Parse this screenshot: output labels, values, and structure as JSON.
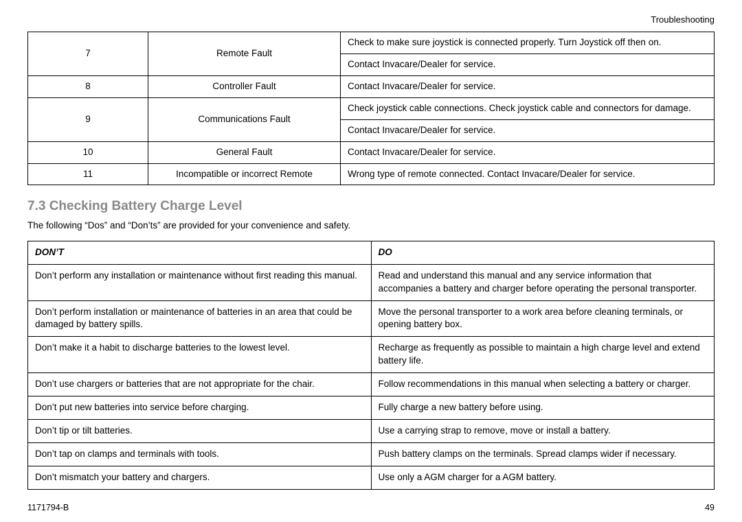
{
  "header": {
    "section_label": "Troubleshooting"
  },
  "fault_table": {
    "rows": [
      {
        "code": "7",
        "name": "Remote Fault",
        "descs": [
          "Check to make sure joystick is connected properly. Turn Joystick off then on.",
          "Contact Invacare/Dealer for service."
        ]
      },
      {
        "code": "8",
        "name": "Controller Fault",
        "descs": [
          "Contact Invacare/Dealer for service."
        ]
      },
      {
        "code": "9",
        "name": "Communications Fault",
        "descs": [
          "Check joystick cable connections. Check joystick cable and connectors for damage.",
          "Contact Invacare/Dealer for service."
        ]
      },
      {
        "code": "10",
        "name": "General Fault",
        "descs": [
          "Contact Invacare/Dealer for service."
        ]
      },
      {
        "code": "11",
        "name": "Incompatible or incorrect Remote",
        "descs": [
          "Wrong type of remote connected. Contact Invacare/Dealer for service."
        ]
      }
    ]
  },
  "section": {
    "title": "7.3 Checking Battery Charge Level",
    "intro": "The following “Dos” and “Don’ts” are provided for your convenience and safety."
  },
  "dos_table": {
    "headers": {
      "dont": "Don’t",
      "do_": "Do"
    },
    "rows": [
      {
        "dont": "Don’t perform any installation or maintenance without first reading this manual.",
        "do_": "Read and understand this manual and any service information that accompanies a battery and charger before operating the personal transporter."
      },
      {
        "dont": "Don’t perform installation or maintenance of batteries in an area that could be damaged by battery spills.",
        "do_": "Move the personal transporter to a work area before cleaning terminals, or opening battery box."
      },
      {
        "dont": "Don’t make it a habit to discharge batteries to the lowest level.",
        "do_": "Recharge as frequently as possible to maintain a high charge level and extend battery life."
      },
      {
        "dont": "Don’t use chargers or batteries that are not appropriate for the chair.",
        "do_": "Follow recommendations in this manual when selecting a battery or charger."
      },
      {
        "dont": "Don’t put new batteries into service before charging.",
        "do_": "Fully charge a new battery before using."
      },
      {
        "dont": "Don’t tip or tilt batteries.",
        "do_": "Use a carrying strap to remove, move or install a battery."
      },
      {
        "dont": "Don’t tap on clamps and terminals with tools.",
        "do_": "Push battery clamps on the terminals. Spread clamps wider if necessary."
      },
      {
        "dont": "Don’t mismatch your battery and chargers.",
        "do_": "Use only a AGM charger for a AGM battery."
      }
    ]
  },
  "footer": {
    "doc_id": "1171794-B",
    "page": "49"
  }
}
